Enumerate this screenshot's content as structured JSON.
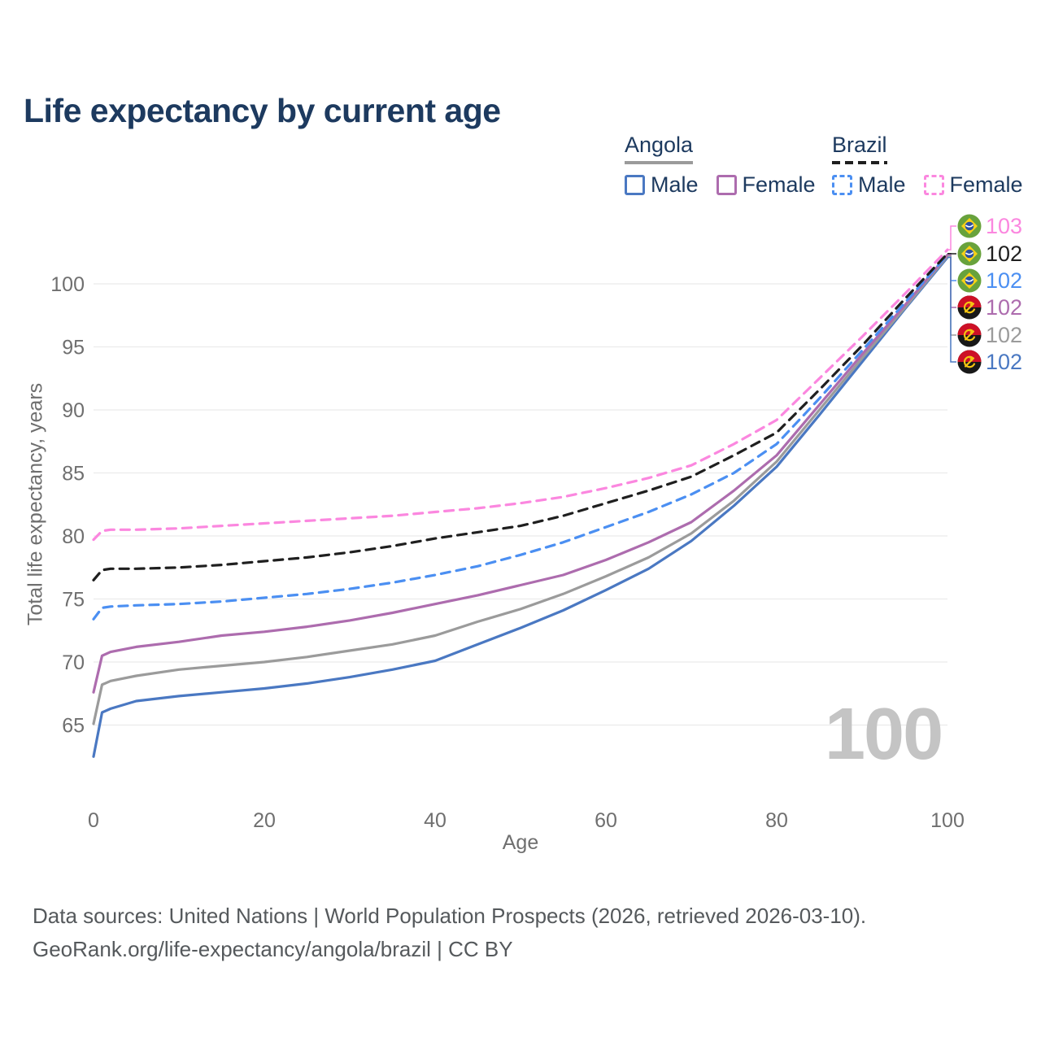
{
  "title": "Life expectancy by current age",
  "legend": {
    "angola": {
      "label": "Angola",
      "male": "Male",
      "female": "Female"
    },
    "brazil": {
      "label": "Brazil",
      "male": "Male",
      "female": "Female"
    }
  },
  "footer": {
    "line1": "Data sources: United Nations | World Population Prospects (2026, retrieved 2026-03-10).",
    "line2": "GeoRank.org/life-expectancy/angola/brazil | CC BY"
  },
  "watermark": "100",
  "colors": {
    "title_text": "#1d3a5f",
    "axis_text": "#6f6f6f",
    "gridline": "#ebebeb",
    "footer_text": "#55595c",
    "watermark_text": "#c4c4c4"
  },
  "chart_data": {
    "type": "line",
    "title": "Life expectancy by current age",
    "xlabel": "Age",
    "ylabel": "Total life expectancy, years",
    "x_ticks": [
      0,
      20,
      40,
      60,
      80,
      100
    ],
    "y_ticks": [
      65,
      70,
      75,
      80,
      85,
      90,
      95,
      100
    ],
    "xlim": [
      0,
      100
    ],
    "ylim": [
      61,
      104
    ],
    "grid": "horizontal",
    "legend_position": "top-right",
    "ages": [
      0,
      1,
      2,
      5,
      10,
      15,
      20,
      25,
      30,
      35,
      40,
      45,
      50,
      55,
      60,
      65,
      70,
      75,
      80,
      85,
      90,
      95,
      100
    ],
    "series": [
      {
        "id": "angola-male",
        "name": "Angola — Male",
        "country": "angola",
        "sex": "male",
        "line": "solid",
        "color": "#4a78c2",
        "end_label": "102",
        "values": [
          62.5,
          66.0,
          66.3,
          66.9,
          67.3,
          67.6,
          67.9,
          68.3,
          68.8,
          69.4,
          70.1,
          71.4,
          72.7,
          74.1,
          75.7,
          77.4,
          79.6,
          82.4,
          85.5,
          89.6,
          93.8,
          98.0,
          102.1
        ]
      },
      {
        "id": "angola-both",
        "name": "Angola — Both sexes",
        "country": "angola",
        "sex": "both",
        "line": "solid",
        "color": "#9b9b9b",
        "end_label": "102",
        "values": [
          65.1,
          68.2,
          68.5,
          68.9,
          69.4,
          69.7,
          70.0,
          70.4,
          70.9,
          71.4,
          72.1,
          73.2,
          74.2,
          75.4,
          76.8,
          78.3,
          80.2,
          82.8,
          85.9,
          90.0,
          94.1,
          98.1,
          102.2
        ]
      },
      {
        "id": "angola-female",
        "name": "Angola — Female",
        "country": "angola",
        "sex": "female",
        "line": "solid",
        "color": "#ad6cae",
        "end_label": "102",
        "values": [
          67.6,
          70.5,
          70.8,
          71.2,
          71.6,
          72.1,
          72.4,
          72.8,
          73.3,
          73.9,
          74.6,
          75.3,
          76.1,
          76.9,
          78.1,
          79.5,
          81.1,
          83.6,
          86.4,
          90.4,
          94.4,
          98.3,
          102.3
        ]
      },
      {
        "id": "brazil-male",
        "name": "Brazil — Male",
        "country": "brazil",
        "sex": "male",
        "line": "dashed",
        "color": "#4b8ff2",
        "end_label": "102",
        "values": [
          73.4,
          74.3,
          74.4,
          74.5,
          74.6,
          74.8,
          75.1,
          75.4,
          75.8,
          76.3,
          76.9,
          77.6,
          78.5,
          79.5,
          80.7,
          81.9,
          83.3,
          85.0,
          87.3,
          90.9,
          94.7,
          98.5,
          102.3
        ]
      },
      {
        "id": "brazil-both",
        "name": "Brazil — Both sexes",
        "country": "brazil",
        "sex": "both",
        "line": "dashed",
        "color": "#1f1f1f",
        "end_label": "102",
        "values": [
          76.5,
          77.3,
          77.4,
          77.4,
          77.5,
          77.7,
          78.0,
          78.3,
          78.7,
          79.2,
          79.8,
          80.3,
          80.8,
          81.6,
          82.6,
          83.6,
          84.7,
          86.4,
          88.2,
          91.6,
          95.1,
          98.8,
          102.4
        ]
      },
      {
        "id": "brazil-female",
        "name": "Brazil — Female",
        "country": "brazil",
        "sex": "female",
        "line": "dashed",
        "color": "#fb87df",
        "end_label": "103",
        "values": [
          79.7,
          80.4,
          80.5,
          80.5,
          80.6,
          80.8,
          81.0,
          81.2,
          81.4,
          81.6,
          81.9,
          82.2,
          82.6,
          83.1,
          83.8,
          84.6,
          85.6,
          87.3,
          89.2,
          92.5,
          95.8,
          99.2,
          102.7
        ]
      }
    ],
    "end_label_order": [
      "brazil-female",
      "brazil-both",
      "brazil-male",
      "angola-female",
      "angola-both",
      "angola-male"
    ]
  }
}
